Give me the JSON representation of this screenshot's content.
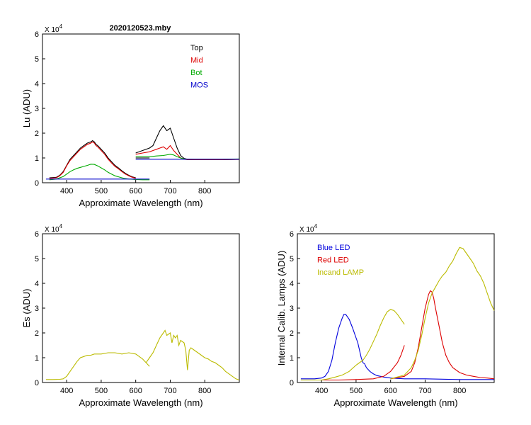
{
  "chart_data": [
    {
      "id": "lu",
      "type": "line",
      "title": "2020120523.mby",
      "xlabel": "Approximate Wavelength (nm)",
      "ylabel": "Lu (ADU)",
      "y_multiplier_label": "X 10",
      "y_multiplier_exp": "4",
      "xlim": [
        330,
        900
      ],
      "ylim": [
        0,
        6
      ],
      "xticks": [
        400,
        500,
        600,
        700,
        800
      ],
      "yticks": [
        0,
        1,
        2,
        3,
        4,
        5,
        6
      ],
      "legend_position": "top-right",
      "series": [
        {
          "name": "Top",
          "color": "#000000",
          "segments": [
            {
              "x": [
                350,
                370,
                380,
                390,
                400,
                410,
                420,
                430,
                440,
                450,
                460,
                470,
                475,
                480,
                485,
                490,
                500,
                510,
                520,
                530,
                540,
                550,
                560,
                570,
                580,
                590,
                600
              ],
              "y": [
                0.2,
                0.22,
                0.3,
                0.45,
                0.7,
                0.95,
                1.1,
                1.25,
                1.4,
                1.5,
                1.6,
                1.65,
                1.7,
                1.65,
                1.55,
                1.5,
                1.35,
                1.2,
                1.0,
                0.85,
                0.7,
                0.6,
                0.48,
                0.38,
                0.3,
                0.24,
                0.2
              ]
            },
            {
              "x": [
                600,
                620,
                640,
                650,
                660,
                670,
                680,
                690,
                700,
                710,
                720,
                730,
                740,
                750,
                800,
                850,
                900
              ],
              "y": [
                1.2,
                1.3,
                1.4,
                1.5,
                1.8,
                2.1,
                2.3,
                2.1,
                2.2,
                1.8,
                1.4,
                1.1,
                0.98,
                0.95,
                0.93,
                0.93,
                0.95
              ]
            },
            {
              "x": [
                600,
                640
              ],
              "y": [
                1.0,
                1.0
              ]
            }
          ]
        },
        {
          "name": "Mid",
          "color": "#dd0000",
          "segments": [
            {
              "x": [
                350,
                370,
                380,
                390,
                400,
                410,
                420,
                430,
                440,
                450,
                460,
                470,
                475,
                480,
                485,
                490,
                500,
                510,
                520,
                530,
                540,
                550,
                560,
                570,
                580,
                590,
                600
              ],
              "y": [
                0.18,
                0.2,
                0.28,
                0.42,
                0.68,
                0.9,
                1.05,
                1.2,
                1.35,
                1.45,
                1.55,
                1.6,
                1.65,
                1.6,
                1.5,
                1.45,
                1.3,
                1.15,
                0.95,
                0.8,
                0.66,
                0.56,
                0.45,
                0.35,
                0.28,
                0.22,
                0.18
              ]
            },
            {
              "x": [
                600,
                620,
                640,
                650,
                660,
                670,
                680,
                690,
                700,
                710,
                720,
                730,
                740,
                750,
                800,
                850,
                900
              ],
              "y": [
                1.15,
                1.2,
                1.25,
                1.3,
                1.35,
                1.4,
                1.45,
                1.35,
                1.5,
                1.3,
                1.15,
                1.0,
                0.95,
                0.93,
                0.93,
                0.93,
                0.94
              ]
            }
          ]
        },
        {
          "name": "Bot",
          "color": "#00aa00",
          "segments": [
            {
              "x": [
                350,
                370,
                380,
                390,
                400,
                410,
                420,
                430,
                440,
                450,
                460,
                470,
                480,
                490,
                500,
                510,
                520,
                530,
                540,
                550,
                560,
                570,
                580,
                590,
                600,
                620,
                640
              ],
              "y": [
                0.12,
                0.15,
                0.2,
                0.25,
                0.35,
                0.45,
                0.52,
                0.58,
                0.62,
                0.66,
                0.7,
                0.75,
                0.74,
                0.68,
                0.6,
                0.52,
                0.42,
                0.35,
                0.28,
                0.24,
                0.2,
                0.17,
                0.15,
                0.14,
                0.13,
                0.12,
                0.12
              ]
            },
            {
              "x": [
                600,
                620,
                640,
                660,
                680,
                700,
                710,
                720,
                730,
                740,
                750,
                800,
                850,
                900
              ],
              "y": [
                1.05,
                1.05,
                1.05,
                1.08,
                1.1,
                1.15,
                1.12,
                1.05,
                1.0,
                0.96,
                0.95,
                0.95,
                0.95,
                0.96
              ]
            }
          ]
        },
        {
          "name": "MOS",
          "color": "#0000cc",
          "segments": [
            {
              "x": [
                340,
                640
              ],
              "y": [
                0.15,
                0.15
              ]
            },
            {
              "x": [
                600,
                900
              ],
              "y": [
                0.95,
                0.95
              ]
            }
          ]
        }
      ]
    },
    {
      "id": "es",
      "type": "line",
      "title": "",
      "xlabel": "Approximate Wavelength (nm)",
      "ylabel": "Es  (ADU)",
      "y_multiplier_label": "X 10",
      "y_multiplier_exp": "4",
      "xlim": [
        330,
        900
      ],
      "ylim": [
        0,
        6
      ],
      "xticks": [
        400,
        500,
        600,
        700,
        800
      ],
      "yticks": [
        0,
        1,
        2,
        3,
        4,
        5,
        6
      ],
      "series": [
        {
          "name": "Es",
          "color": "#bbbb00",
          "segments": [
            {
              "x": [
                340,
                360,
                380,
                390,
                400,
                410,
                420,
                430,
                440,
                450,
                460,
                470,
                480,
                500,
                520,
                540,
                560,
                580,
                600,
                610,
                620,
                630,
                640
              ],
              "y": [
                0.12,
                0.12,
                0.13,
                0.15,
                0.25,
                0.45,
                0.65,
                0.85,
                1.0,
                1.05,
                1.1,
                1.1,
                1.15,
                1.15,
                1.2,
                1.2,
                1.15,
                1.2,
                1.15,
                1.05,
                0.95,
                0.8,
                0.65
              ]
            },
            {
              "x": [
                630,
                640,
                650,
                660,
                670,
                680,
                685,
                690,
                700,
                705,
                710,
                715,
                720,
                725,
                730,
                740,
                745,
                750,
                755,
                760,
                770,
                780,
                790,
                800,
                810,
                820,
                830,
                840,
                850,
                860,
                870,
                880,
                890,
                900
              ],
              "y": [
                0.8,
                1.0,
                1.2,
                1.5,
                1.8,
                2.0,
                2.1,
                1.9,
                2.0,
                1.6,
                1.9,
                1.8,
                1.9,
                1.5,
                1.7,
                1.6,
                1.3,
                0.5,
                1.3,
                1.4,
                1.3,
                1.2,
                1.1,
                1.0,
                0.95,
                0.85,
                0.8,
                0.7,
                0.6,
                0.45,
                0.35,
                0.25,
                0.15,
                0.1
              ]
            }
          ]
        }
      ]
    },
    {
      "id": "calib",
      "type": "line",
      "title": "",
      "xlabel": "Approximate Wavelength (nm)",
      "ylabel": "Internal Calib. Lamps  (ADU)",
      "y_multiplier_label": "X 10",
      "y_multiplier_exp": "4",
      "xlim": [
        330,
        900
      ],
      "ylim": [
        0,
        6
      ],
      "xticks": [
        400,
        500,
        600,
        700,
        800
      ],
      "yticks": [
        0,
        1,
        2,
        3,
        4,
        5,
        6
      ],
      "legend_position": "top-left",
      "series": [
        {
          "name": "Blue LED",
          "color": "#0000dd",
          "segments": [
            {
              "x": [
                340,
                380,
                400,
                410,
                420,
                430,
                440,
                450,
                460,
                465,
                470,
                480,
                490,
                500,
                505,
                510,
                515,
                520,
                525,
                530,
                540,
                550,
                560,
                580,
                600,
                640,
                700,
                800,
                900
              ],
              "y": [
                0.15,
                0.15,
                0.18,
                0.25,
                0.45,
                0.9,
                1.6,
                2.2,
                2.6,
                2.75,
                2.75,
                2.55,
                2.2,
                1.8,
                1.6,
                1.3,
                1.0,
                0.8,
                0.75,
                0.6,
                0.45,
                0.35,
                0.28,
                0.22,
                0.18,
                0.15,
                0.15,
                0.12,
                0.12
              ]
            }
          ]
        },
        {
          "name": "Red LED",
          "color": "#dd0000",
          "segments": [
            {
              "x": [
                340,
                400,
                450,
                500,
                550,
                580,
                600,
                620,
                630,
                640
              ],
              "y": [
                0.1,
                0.1,
                0.1,
                0.12,
                0.15,
                0.25,
                0.45,
                0.8,
                1.1,
                1.5
              ]
            },
            {
              "x": [
                600,
                640,
                660,
                670,
                680,
                690,
                700,
                710,
                715,
                720,
                725,
                730,
                740,
                750,
                760,
                770,
                780,
                800,
                820,
                840,
                860,
                880,
                900
              ],
              "y": [
                0.15,
                0.25,
                0.45,
                0.8,
                1.4,
                2.2,
                3.0,
                3.55,
                3.7,
                3.65,
                3.4,
                3.0,
                2.3,
                1.6,
                1.1,
                0.8,
                0.6,
                0.4,
                0.3,
                0.25,
                0.2,
                0.18,
                0.15
              ]
            }
          ]
        },
        {
          "name": "Incand LAMP",
          "color": "#bbbb00",
          "segments": [
            {
              "x": [
                340,
                400,
                420,
                440,
                460,
                480,
                500,
                510,
                520,
                530,
                540,
                550,
                560,
                570,
                580,
                590,
                600,
                610,
                620,
                630,
                640
              ],
              "y": [
                0.1,
                0.1,
                0.15,
                0.22,
                0.3,
                0.45,
                0.7,
                0.8,
                0.9,
                1.1,
                1.35,
                1.65,
                1.95,
                2.3,
                2.6,
                2.85,
                2.95,
                2.9,
                2.75,
                2.55,
                2.35
              ]
            },
            {
              "x": [
                600,
                640,
                660,
                670,
                680,
                690,
                700,
                710,
                720,
                730,
                740,
                750,
                760,
                770,
                780,
                790,
                800,
                810,
                820,
                830,
                840,
                850,
                860,
                870,
                880,
                890,
                900
              ],
              "y": [
                0.15,
                0.3,
                0.6,
                0.9,
                1.3,
                1.9,
                2.6,
                3.2,
                3.6,
                3.85,
                4.1,
                4.3,
                4.45,
                4.7,
                4.9,
                5.2,
                5.45,
                5.4,
                5.2,
                5.0,
                4.8,
                4.5,
                4.3,
                4.0,
                3.6,
                3.2,
                2.9
              ]
            }
          ]
        }
      ]
    }
  ]
}
